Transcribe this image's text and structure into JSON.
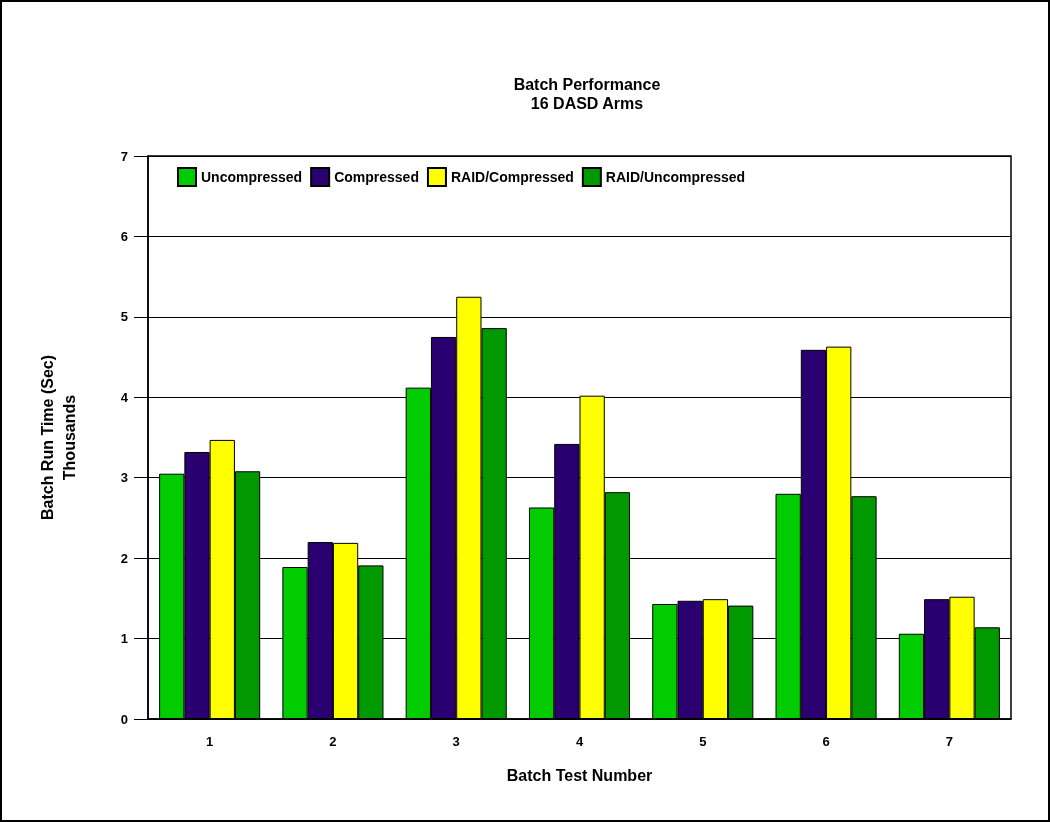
{
  "chart_data": {
    "type": "bar",
    "title": "Batch Performance\n16 DASD Arms",
    "xlabel": "Batch Test Number",
    "ylabel": "Batch Run Time (Sec)\nThousands",
    "categories": [
      "1",
      "2",
      "3",
      "4",
      "5",
      "6",
      "7"
    ],
    "series": [
      {
        "name": "Uncompressed",
        "color": "#00cc00",
        "values": [
          3.05,
          1.89,
          4.12,
          2.63,
          1.43,
          2.8,
          1.06
        ]
      },
      {
        "name": "Compressed",
        "color": "#2a0070",
        "values": [
          3.32,
          2.2,
          4.75,
          3.42,
          1.47,
          4.59,
          1.49
        ]
      },
      {
        "name": "RAID/Compressed",
        "color": "#ffff00",
        "values": [
          3.47,
          2.19,
          5.25,
          4.02,
          1.49,
          4.63,
          1.52
        ]
      },
      {
        "name": "RAID/Uncompressed",
        "color": "#009900",
        "values": [
          3.08,
          1.91,
          4.86,
          2.82,
          1.41,
          2.77,
          1.14
        ]
      }
    ],
    "ylim": [
      0,
      7
    ],
    "yticks": [
      0,
      1,
      2,
      3,
      4,
      5,
      6,
      7
    ],
    "grid": "y",
    "legend": "top left"
  }
}
